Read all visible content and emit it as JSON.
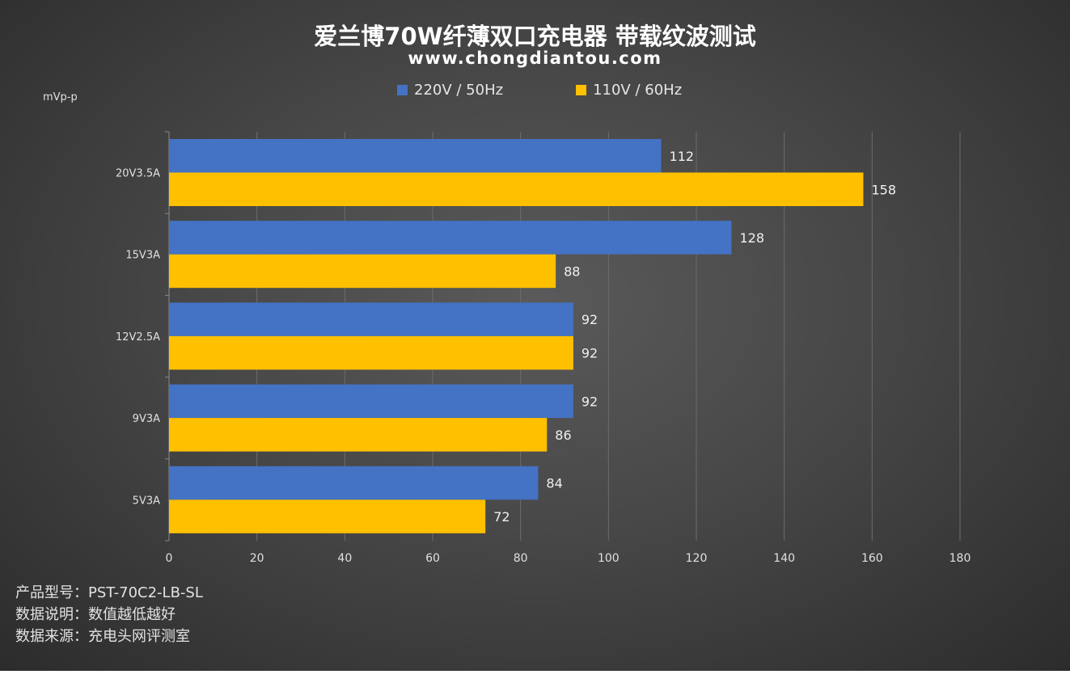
{
  "title": "爱兰博70W纤薄双口充电器 带载纹波测试",
  "subtitle": "www.chongdiantou.com",
  "unit_label": "mVp-p",
  "notes": [
    "产品型号：PST-70C2-LB-SL",
    "数据说明：数值越低越好",
    "数据来源：充电头网评测室"
  ],
  "chart_data": {
    "type": "bar",
    "orientation": "horizontal",
    "title": "爱兰博70W纤薄双口充电器 带载纹波测试",
    "subtitle": "www.chongdiantou.com",
    "ylabel": "mVp-p",
    "categories": [
      "20V3.5A",
      "15V3A",
      "12V2.5A",
      "9V3A",
      "5V3A"
    ],
    "series": [
      {
        "name": "220V / 50Hz",
        "color": "#4472C4",
        "values": [
          112,
          128,
          92,
          92,
          84
        ]
      },
      {
        "name": "110V / 60Hz",
        "color": "#FFC000",
        "values": [
          158,
          88,
          92,
          86,
          72
        ]
      }
    ],
    "xlim": [
      0,
      180
    ],
    "xticks": [
      0,
      20,
      40,
      60,
      80,
      100,
      120,
      140,
      160,
      180
    ],
    "grid": true,
    "legend": "top-center"
  }
}
